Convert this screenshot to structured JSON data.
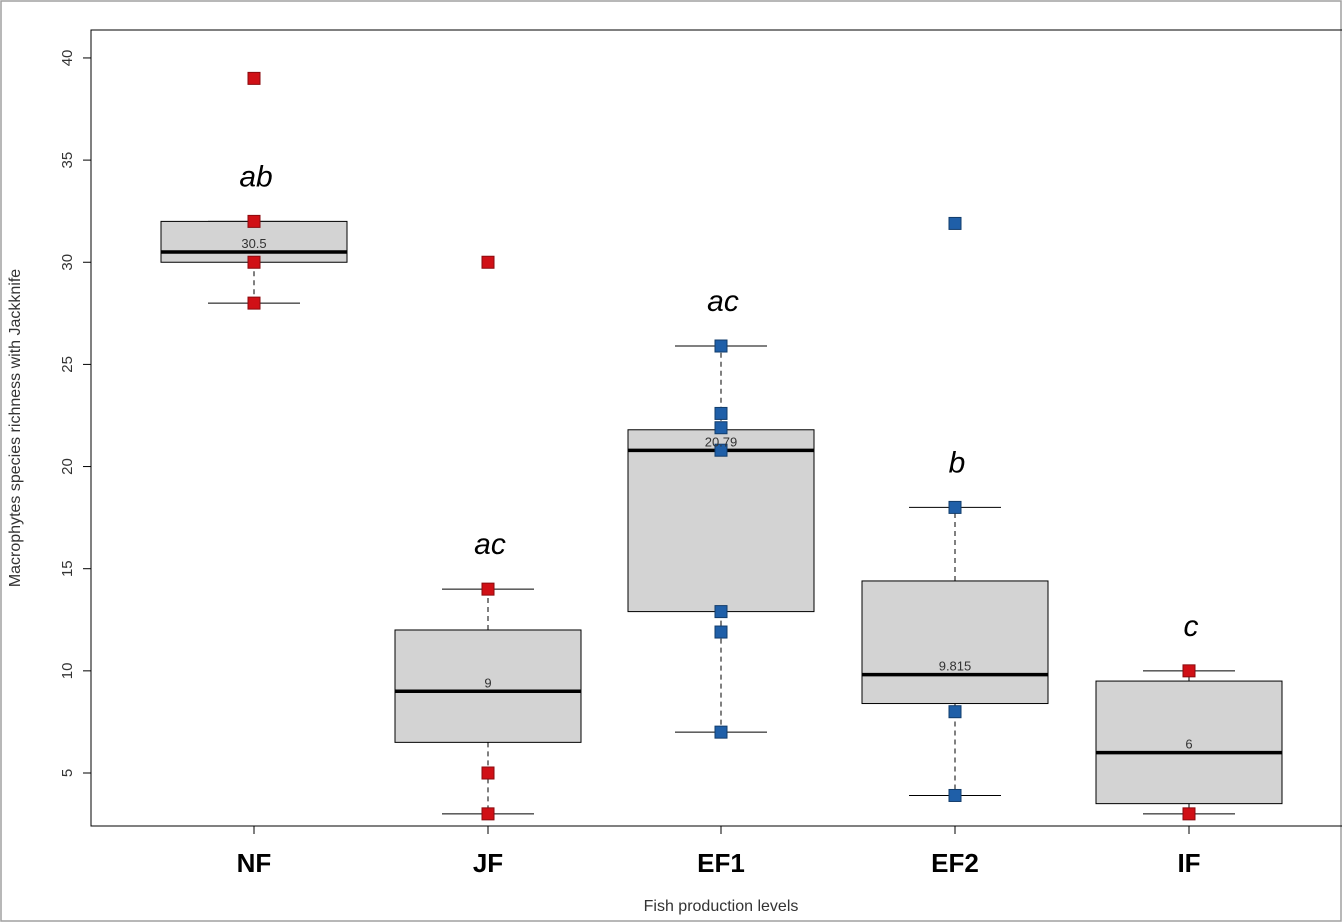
{
  "chart_data": {
    "type": "boxplot",
    "xlabel": "Fish production levels",
    "ylabel": "Macrophytes species richness with Jackknife",
    "ylim": [
      1.5,
      40.5
    ],
    "yticks": [
      5,
      10,
      15,
      20,
      25,
      30,
      35,
      40
    ],
    "grid": false,
    "categories": [
      "NF",
      "JF",
      "EF1",
      "EF2",
      "IF"
    ],
    "boxes": [
      {
        "category": "NF",
        "q1": 30,
        "median": 30.5,
        "q3": 32,
        "whisker_low": 28,
        "whisker_high": 32,
        "median_label": "30.5",
        "letters": "ab",
        "point_color": "#d01016",
        "points": [
          39,
          32,
          30,
          28
        ]
      },
      {
        "category": "JF",
        "q1": 6.5,
        "median": 9,
        "q3": 12,
        "whisker_low": 3,
        "whisker_high": 14,
        "median_label": "9",
        "letters": "ac",
        "point_color": "#d01016",
        "points": [
          30,
          14,
          5,
          3
        ]
      },
      {
        "category": "EF1",
        "q1": 12.9,
        "median": 20.79,
        "q3": 21.8,
        "whisker_low": 7,
        "whisker_high": 25.9,
        "median_label": "20.79",
        "letters": "ac",
        "point_color": "#1f5fa8",
        "points": [
          25.9,
          22.6,
          21.9,
          20.8,
          12.9,
          11.9,
          7
        ]
      },
      {
        "category": "EF2",
        "q1": 8.4,
        "median": 9.815,
        "q3": 14.4,
        "whisker_low": 3.9,
        "whisker_high": 18,
        "median_label": "9.815",
        "letters": "b",
        "point_color": "#1f5fa8",
        "points": [
          31.9,
          18,
          8,
          3.9
        ]
      },
      {
        "category": "IF",
        "q1": 3.5,
        "median": 6,
        "q3": 9.5,
        "whisker_low": 3,
        "whisker_high": 10,
        "median_label": "6",
        "letters": "c",
        "point_color": "#d01016",
        "points": [
          10,
          3
        ]
      }
    ]
  }
}
